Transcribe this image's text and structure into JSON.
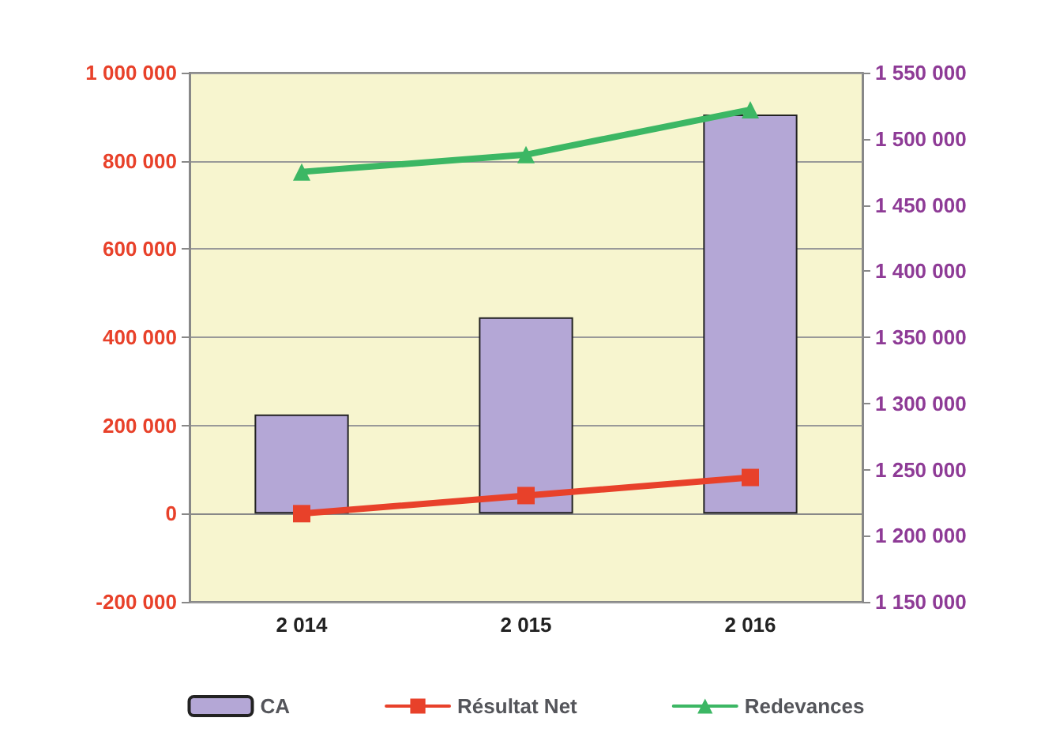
{
  "chart_data": {
    "type": "bar",
    "categories": [
      "2 014",
      "2 015",
      "2 016"
    ],
    "series": [
      {
        "name": "CA",
        "color": "#b4a7d6",
        "values": [
          225000,
          445000,
          905000
        ]
      },
      {
        "name": "Résultat Net",
        "type": "line",
        "color": "#e8412a",
        "marker": "square",
        "values": [
          0,
          41000,
          82000
        ]
      },
      {
        "name": "Redevances",
        "type": "line",
        "color": "#3cb764",
        "marker": "triangle",
        "axis": "y2",
        "values": [
          1475000,
          1488000,
          1522000
        ]
      }
    ],
    "ylim": [
      -200000,
      1000000
    ],
    "yticks": [
      {
        "value": -200000,
        "label": "-200 000"
      },
      0,
      {
        "value": 200000,
        "label": "200 000"
      },
      {
        "value": 400000,
        "label": "400 000"
      },
      {
        "value": 600000,
        "label": "600 000"
      },
      {
        "value": 800000,
        "label": "800 000"
      },
      {
        "value": 1000000,
        "label": "1 000 000"
      }
    ],
    "y2lim": [
      1150000,
      1550000
    ],
    "y2ticks": [
      {
        "value": 1150000,
        "label": "1 150 000"
      },
      {
        "value": 1200000,
        "label": "1 200 000"
      },
      {
        "value": 1250000,
        "label": "1 250 000"
      },
      {
        "value": 1300000,
        "label": "1 300 000"
      },
      {
        "value": 1350000,
        "label": "1 350 000"
      },
      {
        "value": 1400000,
        "label": "1 400 000"
      },
      {
        "value": 1450000,
        "label": "1 450 000"
      },
      {
        "value": 1500000,
        "label": "1 500 000"
      },
      {
        "value": 1550000,
        "label": "1 550 000"
      }
    ],
    "grid": "y",
    "legend": "bottom"
  }
}
